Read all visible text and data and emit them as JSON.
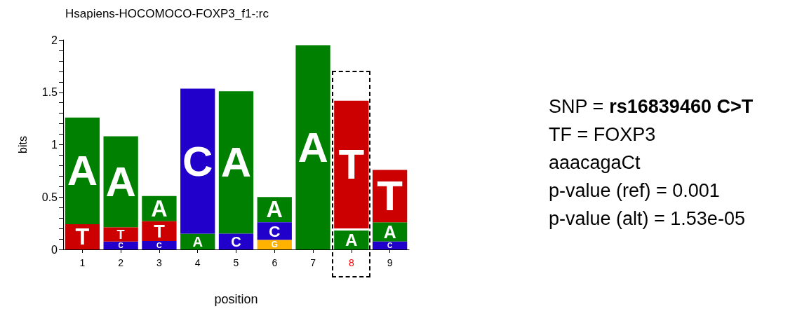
{
  "chart_data": {
    "type": "bar",
    "title": "Hsapiens-HOCOMOCO-FOXP3_f1-:rc",
    "xlabel": "position",
    "ylabel": "bits",
    "categories": [
      "1",
      "2",
      "3",
      "4",
      "5",
      "6",
      "7",
      "8",
      "9"
    ],
    "series": [
      {
        "name": "A",
        "color": "#008000",
        "base": [
          0.24,
          0.21,
          0.27,
          0,
          0.15,
          0.26,
          0,
          0,
          0.075
        ],
        "values": [
          1.02,
          0.87,
          0.24,
          0.15,
          1.36,
          0.24,
          1.95,
          0.18,
          0.185
        ]
      },
      {
        "name": "C",
        "color": "#2200cc",
        "base": [
          null,
          0,
          0,
          0.15,
          0,
          0.09,
          null,
          null,
          0
        ],
        "values": [
          null,
          0.075,
          0.08,
          1.385,
          0.15,
          0.17,
          null,
          null,
          0.075
        ]
      },
      {
        "name": "G",
        "color": "#ffb300",
        "base": [
          null,
          null,
          null,
          null,
          null,
          0,
          null,
          null,
          null
        ],
        "values": [
          null,
          null,
          null,
          null,
          null,
          0.09,
          null,
          null,
          null
        ]
      },
      {
        "name": "T",
        "color": "#cc0000",
        "base": [
          0,
          0.075,
          0.08,
          null,
          null,
          null,
          null,
          0.2,
          0.26
        ],
        "values": [
          0.24,
          0.135,
          0.19,
          null,
          null,
          null,
          null,
          1.22,
          0.5
        ]
      }
    ],
    "ylim": [
      0,
      2
    ],
    "yticks": [
      0,
      {
        "value": 0.1,
        "label": null
      },
      {
        "value": 0.2,
        "label": null
      },
      {
        "value": 0.3,
        "label": null
      },
      {
        "value": 0.4,
        "label": null
      },
      0.5,
      {
        "value": 0.6,
        "label": null
      },
      {
        "value": 0.7,
        "label": null
      },
      {
        "value": 0.8,
        "label": null
      },
      {
        "value": 0.9,
        "label": null
      },
      1,
      {
        "value": 1.1,
        "label": null
      },
      {
        "value": 1.2,
        "label": null
      },
      {
        "value": 1.3,
        "label": null
      },
      {
        "value": 1.4,
        "label": null
      },
      1.5,
      {
        "value": 1.6,
        "label": null
      },
      {
        "value": 1.7,
        "label": null
      },
      {
        "value": 1.8,
        "label": null
      },
      {
        "value": 1.9,
        "label": null
      },
      2
    ],
    "grid": false,
    "legend": false,
    "annotations": [
      "SNP = rs16839460 C>T",
      "TF = FOXP3",
      "aaacagaCt",
      "p-value (ref) = 0.001",
      "p-value (alt) = 1.53e-05"
    ]
  }
}
